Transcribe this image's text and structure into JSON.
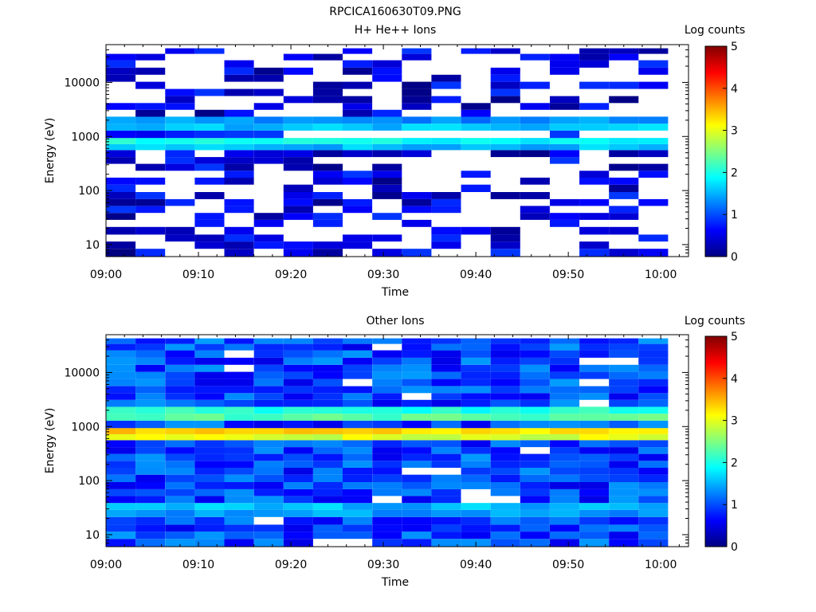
{
  "figure": {
    "title": "RPCICA160630T09.PNG"
  },
  "colorbar": {
    "label": "Log counts",
    "range": [
      0,
      5
    ],
    "ticks": [
      "0",
      "1",
      "2",
      "3",
      "4",
      "5"
    ],
    "colormap": [
      "#000080",
      "#0000ff",
      "#00ffff",
      "#ffff00",
      "#ff0000",
      "#800000"
    ]
  },
  "chart_data": [
    {
      "type": "heatmap",
      "title": "H+ He++ Ions",
      "xlabel": "Time",
      "ylabel": "Energy (eV)",
      "y_scale": "log",
      "ylim": [
        6,
        50000
      ],
      "xlim": [
        "09:00",
        "10:03"
      ],
      "x_ticks": [
        "09:00",
        "09:10",
        "09:20",
        "09:30",
        "09:40",
        "09:50",
        "10:00"
      ],
      "y_ticks": [
        "10",
        "100",
        "1000",
        "10000"
      ],
      "time_bins": [
        "09:01.6",
        "09:04.8",
        "09:08.0",
        "09:11.2",
        "09:14.4",
        "09:17.6",
        "09:20.8",
        "09:24.0",
        "09:27.2",
        "09:30.4",
        "09:33.6",
        "09:36.8",
        "09:40.0",
        "09:43.2",
        "09:46.4",
        "09:49.6",
        "09:52.8",
        "09:56.0",
        "09:59.2"
      ],
      "energy_bins_eV": [
        7,
        10,
        13,
        18,
        25,
        33,
        45,
        60,
        80,
        110,
        150,
        200,
        270,
        360,
        480,
        650,
        800,
        1100,
        1500,
        2000,
        2700,
        3600,
        4800,
        6500,
        8800,
        12000,
        16000,
        22000,
        30000,
        38000
      ],
      "zlim": [
        0,
        5
      ],
      "zlabel": "Log counts",
      "features": [
        {
          "label": "",
          "energy_eV": 800,
          "log_counts": 1.9
        },
        {
          "label": "",
          "energy_eV": 1600,
          "log_counts": 1.7
        },
        {
          "label": "",
          "energy_eV": 25,
          "log_counts": 0.6
        }
      ],
      "background_log_counts": 0.3,
      "fill_fraction": 0.45
    },
    {
      "type": "heatmap",
      "title": "Other Ions",
      "xlabel": "Time",
      "ylabel": "Energy (eV)",
      "y_scale": "log",
      "ylim": [
        6,
        50000
      ],
      "xlim": [
        "09:00",
        "10:03"
      ],
      "x_ticks": [
        "09:00",
        "09:10",
        "09:20",
        "09:30",
        "09:40",
        "09:50",
        "10:00"
      ],
      "y_ticks": [
        "10",
        "100",
        "1000",
        "10000"
      ],
      "time_bins": [
        "09:01.6",
        "09:04.8",
        "09:08.0",
        "09:11.2",
        "09:14.4",
        "09:17.6",
        "09:20.8",
        "09:24.0",
        "09:27.2",
        "09:30.4",
        "09:33.6",
        "09:36.8",
        "09:40.0",
        "09:43.2",
        "09:46.4",
        "09:49.6",
        "09:52.8",
        "09:56.0",
        "09:59.2"
      ],
      "energy_bins_eV": [
        7,
        10,
        13,
        18,
        25,
        33,
        45,
        60,
        80,
        110,
        150,
        200,
        270,
        360,
        480,
        650,
        800,
        1100,
        1500,
        2000,
        2700,
        3600,
        4800,
        6500,
        8800,
        12000,
        16000,
        22000,
        30000,
        38000
      ],
      "zlim": [
        0,
        5
      ],
      "zlabel": "Log counts",
      "features": [
        {
          "label": "",
          "energy_eV": 800,
          "log_counts": 3.3
        },
        {
          "label": "",
          "energy_eV": 1600,
          "log_counts": 2.4
        },
        {
          "label": "",
          "energy_eV": 30,
          "log_counts": 1.7
        }
      ],
      "background_log_counts": 0.8,
      "fill_fraction": 0.95
    }
  ]
}
